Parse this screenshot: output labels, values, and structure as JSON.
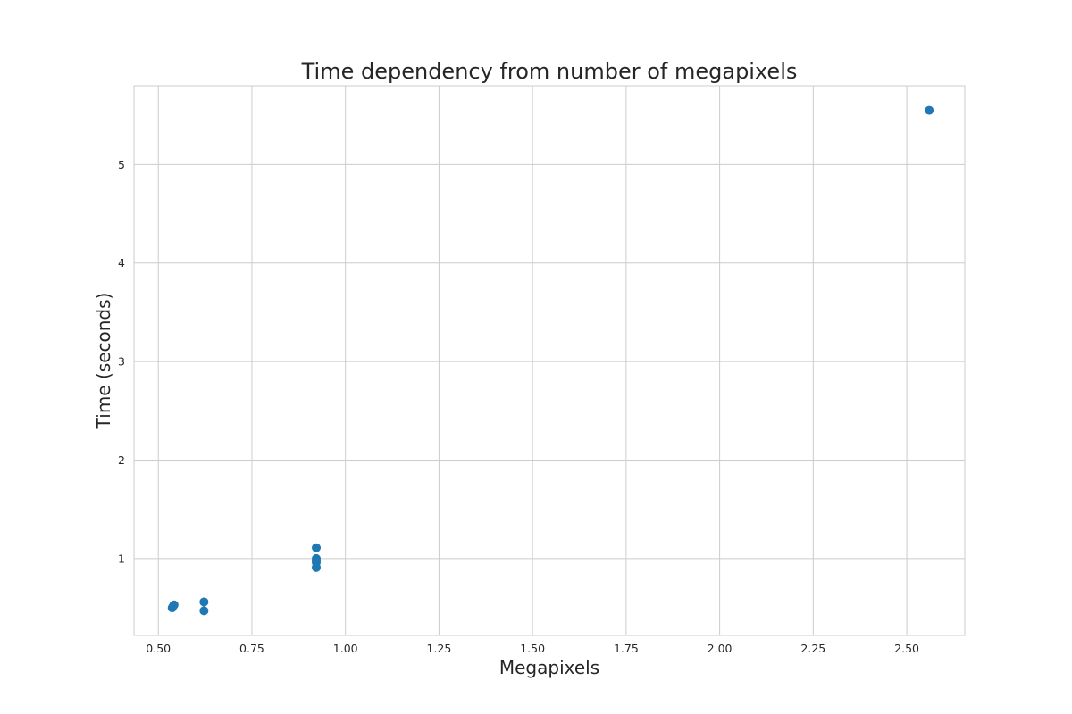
{
  "chart_data": {
    "type": "scatter",
    "title": "Time dependency from number of megapixels",
    "xlabel": "Megapixels",
    "ylabel": "Time (seconds)",
    "xlim": [
      0.435,
      2.655
    ],
    "ylim": [
      0.22,
      5.8
    ],
    "grid": true,
    "marker_color": "#1f77b4",
    "x_ticks": [
      0.5,
      0.75,
      1.0,
      1.25,
      1.5,
      1.75,
      2.0,
      2.25,
      2.5
    ],
    "x_tick_labels": [
      "0.50",
      "0.75",
      "1.00",
      "1.25",
      "1.50",
      "1.75",
      "2.00",
      "2.25",
      "2.50"
    ],
    "y_ticks": [
      1,
      2,
      3,
      4,
      5
    ],
    "y_tick_labels": [
      "1",
      "2",
      "3",
      "4",
      "5"
    ],
    "points": [
      {
        "x": 0.537,
        "y": 0.5
      },
      {
        "x": 0.54,
        "y": 0.52
      },
      {
        "x": 0.542,
        "y": 0.53
      },
      {
        "x": 0.622,
        "y": 0.56
      },
      {
        "x": 0.622,
        "y": 0.47
      },
      {
        "x": 0.922,
        "y": 1.11
      },
      {
        "x": 0.922,
        "y": 1.0
      },
      {
        "x": 0.922,
        "y": 0.98
      },
      {
        "x": 0.922,
        "y": 0.96
      },
      {
        "x": 0.922,
        "y": 0.91
      },
      {
        "x": 2.56,
        "y": 5.55
      }
    ]
  }
}
